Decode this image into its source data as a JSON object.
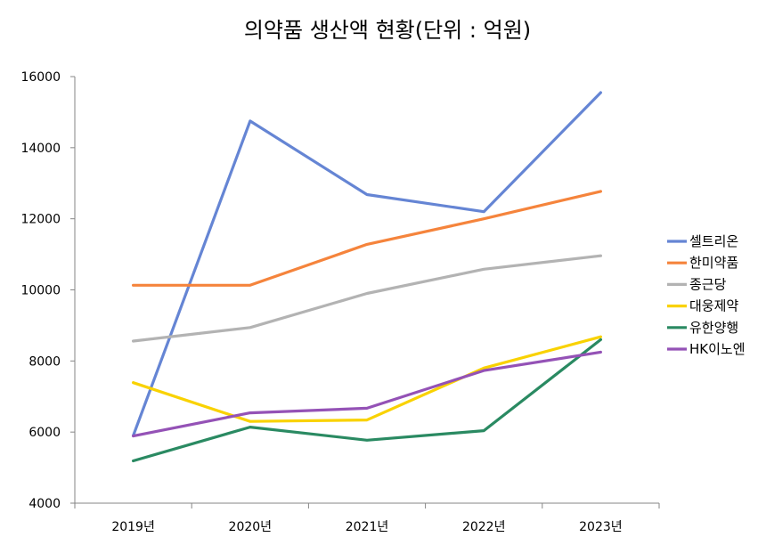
{
  "chart_data": {
    "type": "line",
    "title": "의약품 생산액 현황(단위 : 억원)",
    "xlabel": "",
    "ylabel": "",
    "categories": [
      "2019년",
      "2020년",
      "2021년",
      "2022년",
      "2023년"
    ],
    "ylim": [
      4000,
      16000
    ],
    "yticks": [
      4000,
      6000,
      8000,
      10000,
      12000,
      14000,
      16000
    ],
    "grid": false,
    "legend_position": "right",
    "series": [
      {
        "name": "셀트리온",
        "color": "#6585d4",
        "values": [
          5900,
          14750,
          12680,
          12200,
          15550
        ]
      },
      {
        "name": "한미약품",
        "color": "#f5843c",
        "values": [
          10130,
          10130,
          11280,
          12000,
          12770
        ]
      },
      {
        "name": "종근당",
        "color": "#b3b3b3",
        "values": [
          8560,
          8940,
          9900,
          10580,
          10960
        ]
      },
      {
        "name": "대웅제약",
        "color": "#f9d200",
        "values": [
          7390,
          6300,
          6340,
          7800,
          8680
        ]
      },
      {
        "name": "유한양행",
        "color": "#2a8a62",
        "values": [
          5190,
          6140,
          5770,
          6040,
          8600
        ]
      },
      {
        "name": "HK이노엔",
        "color": "#9452b6",
        "values": [
          5890,
          6540,
          6670,
          7730,
          8250
        ]
      }
    ]
  }
}
